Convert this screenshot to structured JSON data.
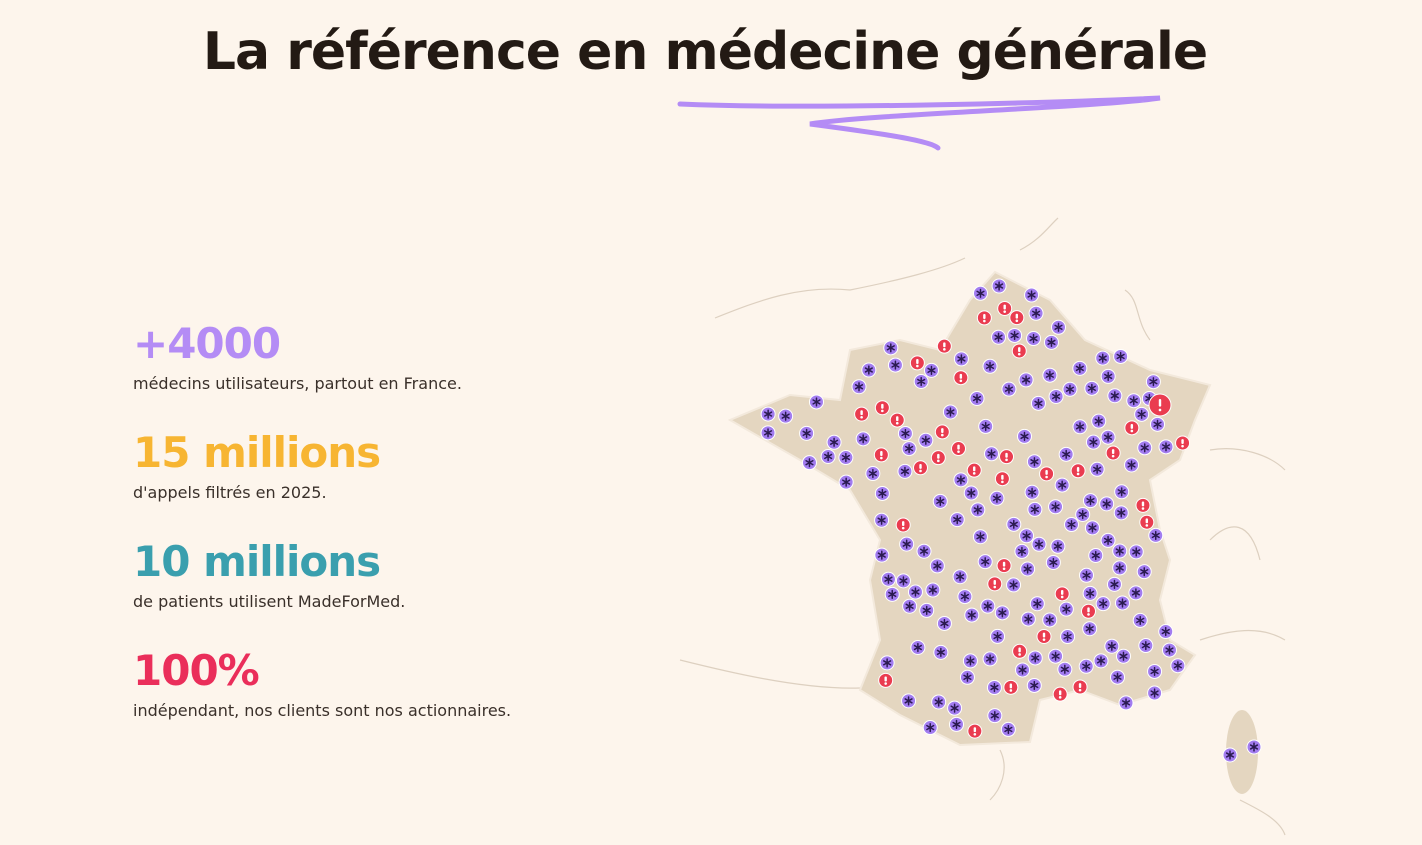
{
  "title": "La référence en médecine générale",
  "stats": [
    {
      "value": "+4000",
      "label": "médecins utilisateurs, partout en France.",
      "color": "#b48cf5"
    },
    {
      "value": "15 millions",
      "label": "d'appels filtrés en 2025.",
      "color": "#f7b532"
    },
    {
      "value": "10 millions",
      "label": "de patients utilisent MadeForMed.",
      "color": "#3a9fae"
    },
    {
      "value": "100%",
      "label": "indépendant, nos clients sont nos actionnaires.",
      "color": "#ea2e5a"
    }
  ],
  "map": {
    "land_color": "#e4d6c0",
    "doctor_marker_color": "#a27cf0",
    "doctor_marker_icon": "asterisk-icon",
    "partner_marker_color": "#ea3c50",
    "partner_marker_icon": "exclamation-icon",
    "accent_underline_color": "#b48cf5"
  }
}
